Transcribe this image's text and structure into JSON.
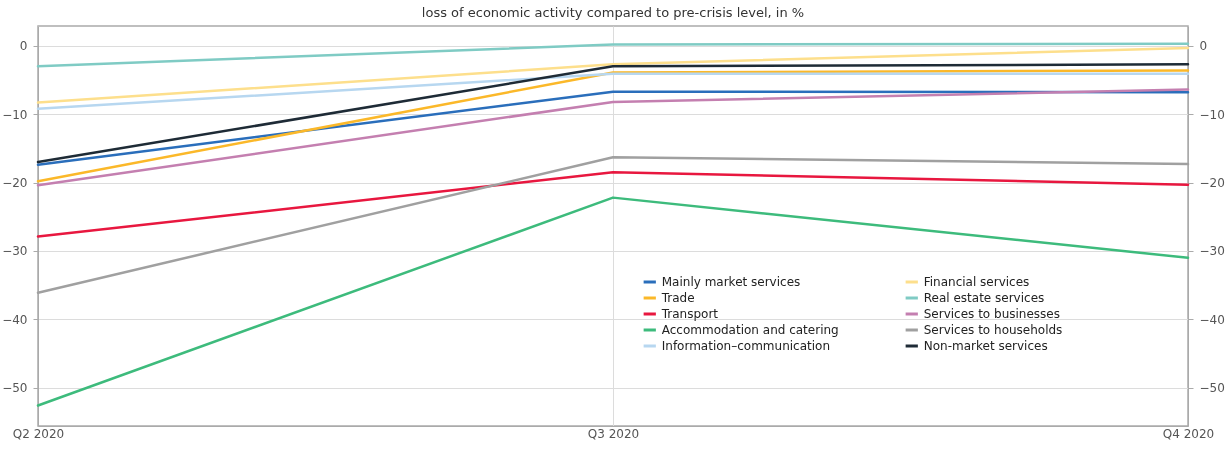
{
  "chart_data": {
    "type": "line",
    "title": "loss of economic activity compared to pre-crisis level, in %",
    "categories": [
      "Q2 2020",
      "Q3 2020",
      "Q4 2020"
    ],
    "series": [
      {
        "name": "Mainly market services",
        "color": "#2a6ebb",
        "values": [
          -17.4,
          -6.7,
          -6.8
        ]
      },
      {
        "name": "Trade",
        "color": "#fbb829",
        "values": [
          -19.8,
          -3.9,
          -3.6
        ]
      },
      {
        "name": "Transport",
        "color": "#e8173f",
        "values": [
          -27.9,
          -18.5,
          -20.3
        ]
      },
      {
        "name": "Accommodation and catering",
        "color": "#3dbb7c",
        "values": [
          -52.6,
          -22.2,
          -31.0
        ]
      },
      {
        "name": "Information–communication",
        "color": "#b7d7f0",
        "values": [
          -9.2,
          -4.1,
          -4.1
        ]
      },
      {
        "name": "Financial services",
        "color": "#fddf8c",
        "values": [
          -8.3,
          -2.7,
          -0.3
        ]
      },
      {
        "name": "Real estate services",
        "color": "#7fcbc4",
        "values": [
          -3.0,
          0.2,
          0.3
        ]
      },
      {
        "name": "Services to businesses",
        "color": "#c47fb0",
        "values": [
          -20.4,
          -8.2,
          -6.4
        ]
      },
      {
        "name": "Services to households",
        "color": "#a0a0a0",
        "values": [
          -36.1,
          -16.3,
          -17.3
        ]
      },
      {
        "name": "Non-market services",
        "color": "#1e2b36",
        "values": [
          -17.0,
          -3.0,
          -2.7
        ]
      }
    ],
    "ylim": [
      -55.6,
      2.9
    ],
    "yticks": [
      -50,
      -40,
      -30,
      -20,
      -10,
      0
    ],
    "y2lim": [
      -55.6,
      2.9
    ],
    "y2ticks": [
      -50,
      -40,
      -30,
      -20,
      -10,
      0
    ],
    "grid": true,
    "legend": "right",
    "marker": "none",
    "line_style": "solid"
  }
}
